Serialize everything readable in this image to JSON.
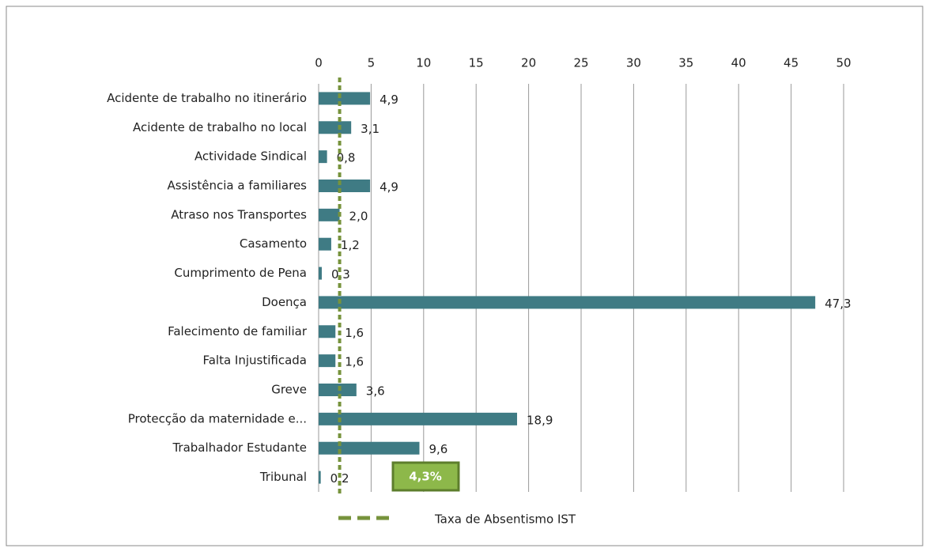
{
  "chart_data": {
    "type": "barh",
    "categories": [
      "Acidente de trabalho no itinerário",
      "Acidente de trabalho no local",
      "Actividade Sindical",
      "Assistência a familiares",
      "Atraso nos Transportes",
      "Casamento",
      "Cumprimento de Pena",
      "Doença",
      "Falecimento de familiar",
      "Falta Injustificada",
      "Greve",
      "Protecção da maternidade e...",
      "Trabalhador Estudante",
      "Tribunal"
    ],
    "values": [
      4.9,
      3.1,
      0.8,
      4.9,
      2.0,
      1.2,
      0.3,
      47.3,
      1.6,
      1.6,
      3.6,
      18.9,
      9.6,
      0.2
    ],
    "value_labels": [
      "4,9",
      "3,1",
      "0,8",
      "4,9",
      "2,0",
      "1,2",
      "0,3",
      "47,3",
      "1,6",
      "1,6",
      "3,6",
      "18,9",
      "9,6",
      "0,2"
    ],
    "color": "#3f7b84",
    "xlim": [
      0,
      50
    ],
    "xticks": [
      0,
      5,
      10,
      15,
      20,
      25,
      30,
      35,
      40,
      45,
      50
    ],
    "grid": true,
    "reference_line": {
      "name": "Taxa de Absentismo IST",
      "value": 2.0,
      "color": "#77933c"
    },
    "annotations": [
      "4,3%"
    ]
  }
}
